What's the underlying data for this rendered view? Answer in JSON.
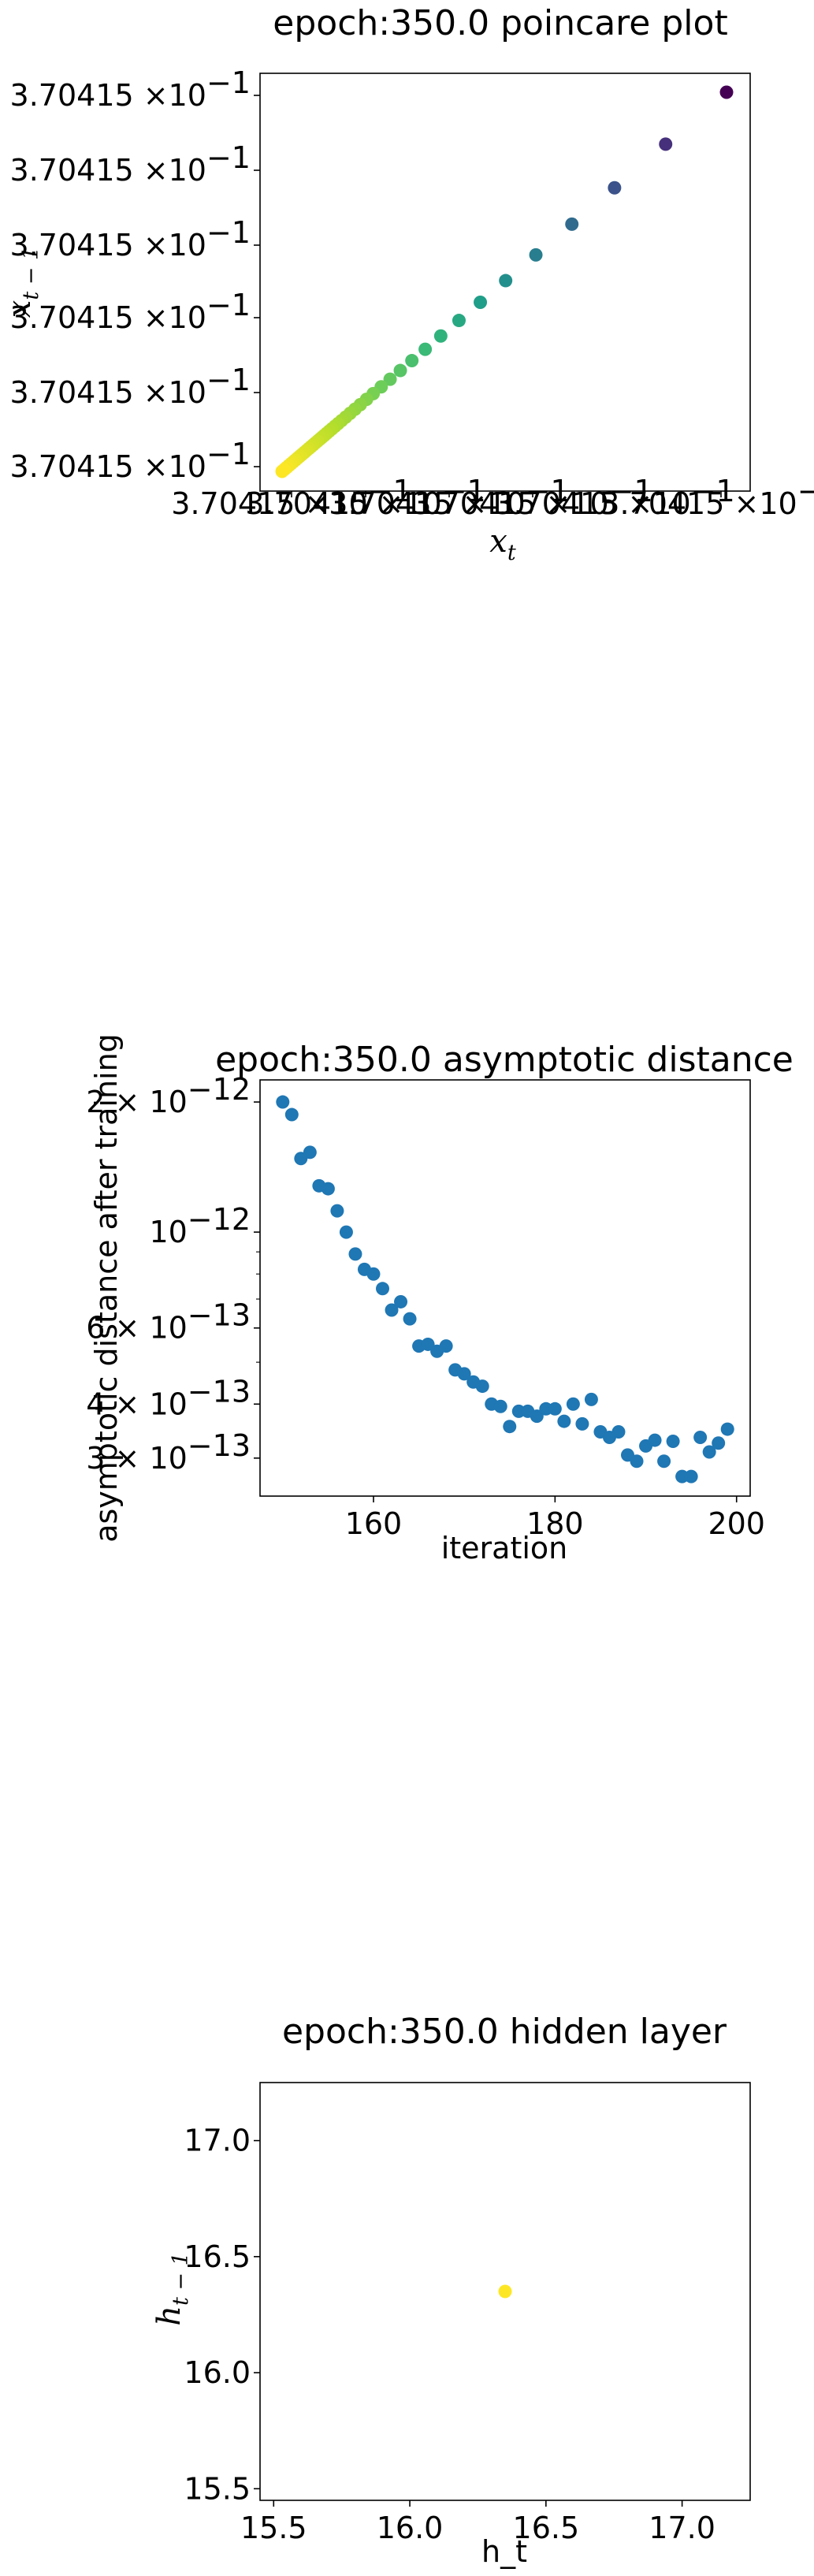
{
  "chart_data": [
    {
      "type": "scatter",
      "title": "epoch:350.0 poincare plot",
      "xlabel": "x_t",
      "ylabel": "x_{t-1}",
      "x_tick_labels": [
        "3.70415 × 10^-1",
        "3.70415 × 10^-1",
        "3.70415 × 10^-1",
        "3.70415 × 10^-1",
        "3.70415 × 10^-1",
        "3.70415 × 10^-1"
      ],
      "y_tick_labels": [
        "3.70415 × 10^-1",
        "3.70415 × 10^-1",
        "3.70415 × 10^-1",
        "3.70415 × 10^-1",
        "3.70415 × 10^-1",
        "3.70415 × 10^-1"
      ],
      "x_scale": "log",
      "y_scale": "log",
      "note_values": "all points ≈ 0.370415; offsets in arbitrary units along the diagonal",
      "points_relative": [
        1.0,
        0.863,
        0.748,
        0.652,
        0.571,
        0.503,
        0.446,
        0.398,
        0.357,
        0.322,
        0.292,
        0.266,
        0.243,
        0.223,
        0.205,
        0.19,
        0.176,
        0.164,
        0.153,
        0.143,
        0.134,
        0.126,
        0.119,
        0.112,
        0.106,
        0.1,
        0.095,
        0.09,
        0.085,
        0.08,
        0.075,
        0.07,
        0.065,
        0.06,
        0.055,
        0.05,
        0.045,
        0.04,
        0.035,
        0.03,
        0.025,
        0.02,
        0.015,
        0.01,
        0.005,
        0.0
      ],
      "colormap": "viridis",
      "grid": false
    },
    {
      "type": "scatter",
      "title": "epoch:350.0 asymptotic distance",
      "xlabel": "iteration",
      "ylabel": "asymptotic distance after training",
      "xlim": [
        147.5,
        201.5
      ],
      "ylim": [
        2.45e-13,
        2.25e-12
      ],
      "x_ticks": [
        160,
        180,
        200
      ],
      "y_scale": "log",
      "y_tick_labels": [
        {
          "value": 2e-12,
          "mant": "2",
          "exp": "−12"
        },
        {
          "value": 1e-12,
          "mant": "",
          "exp": "−12"
        },
        {
          "value": 6e-13,
          "mant": "6",
          "exp": "−13"
        },
        {
          "value": 4e-13,
          "mant": "4",
          "exp": "−13"
        },
        {
          "value": 3e-13,
          "mant": "3",
          "exp": "−13"
        }
      ],
      "x": [
        150,
        151,
        152,
        153,
        154,
        155,
        156,
        157,
        158,
        159,
        160,
        161,
        162,
        163,
        164,
        165,
        166,
        167,
        168,
        169,
        170,
        171,
        172,
        173,
        174,
        175,
        176,
        177,
        178,
        179,
        180,
        181,
        182,
        183,
        184,
        185,
        186,
        187,
        188,
        189,
        190,
        191,
        192,
        193,
        194,
        195,
        196,
        197,
        198,
        199
      ],
      "y": [
        2e-12,
        1.87e-12,
        1.48e-12,
        1.53e-12,
        1.28e-12,
        1.26e-12,
        1.12e-12,
        1e-12,
        8.9e-13,
        8.2e-13,
        8e-13,
        7.4e-13,
        6.6e-13,
        6.9e-13,
        6.3e-13,
        5.45e-13,
        5.5e-13,
        5.3e-13,
        5.45e-13,
        4.8e-13,
        4.7e-13,
        4.5e-13,
        4.4e-13,
        4e-13,
        3.95e-13,
        3.55e-13,
        3.85e-13,
        3.85e-13,
        3.75e-13,
        3.9e-13,
        3.9e-13,
        3.65e-13,
        4e-13,
        3.6e-13,
        4.1e-13,
        3.45e-13,
        3.35e-13,
        3.45e-13,
        3.05e-13,
        2.95e-13,
        3.2e-13,
        3.3e-13,
        2.95e-13,
        3.28e-13,
        2.72e-13,
        2.72e-13,
        3.35e-13,
        3.1e-13,
        3.25e-13,
        3.5e-13
      ],
      "color": "#1f77b4",
      "grid": false
    },
    {
      "type": "scatter",
      "title": "epoch:350.0 hidden layer",
      "xlabel": "h_t",
      "ylabel": "h_{t-1}",
      "xlim": [
        15.45,
        17.25
      ],
      "ylim": [
        15.45,
        17.25
      ],
      "x_ticks": [
        15.5,
        16.0,
        16.5,
        17.0
      ],
      "y_ticks": [
        15.5,
        16.0,
        16.5,
        17.0
      ],
      "x": [
        16.35
      ],
      "y": [
        16.35
      ],
      "color": "#fde725",
      "grid": false
    }
  ],
  "labels": {
    "p1_xlabel_main": "x",
    "p1_xlabel_sub": "t",
    "p1_ylabel_main": "x",
    "p1_ylabel_sub": "t − 1",
    "p2_xlabel": "iteration",
    "p2_ylabel": "asymptotic distance after training",
    "p3_xlabel": "h_t",
    "p3_ylabel_main": "h",
    "p3_ylabel_sub": "t − 1",
    "tick_mantissa": "3.70415",
    "tick_exp": "−1",
    "times": "×10"
  }
}
